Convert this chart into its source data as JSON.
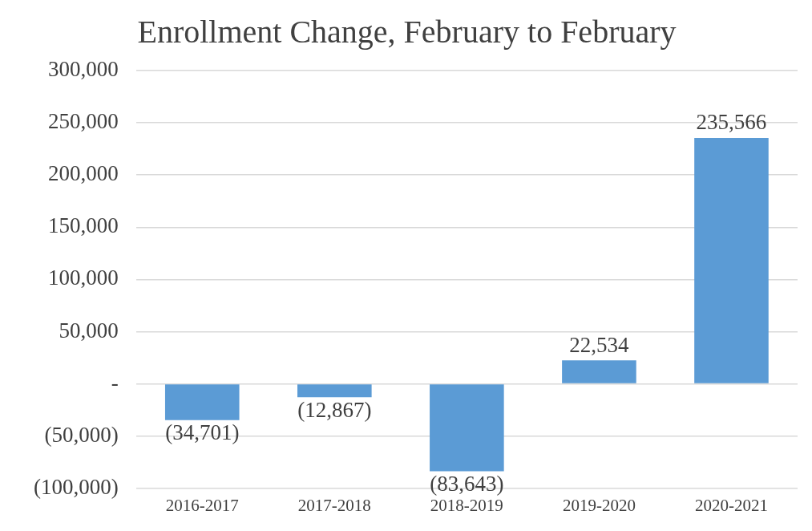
{
  "chart_data": {
    "type": "bar",
    "title": "Enrollment Change, February to February",
    "categories": [
      "2016-2017",
      "2017-2018",
      "2018-2019",
      "2019-2020",
      "2020-2021"
    ],
    "values": [
      -34701,
      -12867,
      -83643,
      22534,
      235566
    ],
    "value_labels": [
      "(34,701)",
      "(12,867)",
      "(83,643)",
      "22,534",
      "235,566"
    ],
    "color": "#5b9bd5",
    "ylim": [
      -100000,
      300000
    ],
    "yticks": [
      {
        "value": -100000,
        "label": "(100,000)"
      },
      {
        "value": -50000,
        "label": "(50,000)"
      },
      {
        "value": 0,
        "label": "-"
      },
      {
        "value": 50000,
        "label": "50,000"
      },
      {
        "value": 100000,
        "label": "100,000"
      },
      {
        "value": 150000,
        "label": "150,000"
      },
      {
        "value": 200000,
        "label": "200,000"
      },
      {
        "value": 250000,
        "label": "250,000"
      },
      {
        "value": 300000,
        "label": "300,000"
      }
    ],
    "grid": "y",
    "legend": false
  }
}
